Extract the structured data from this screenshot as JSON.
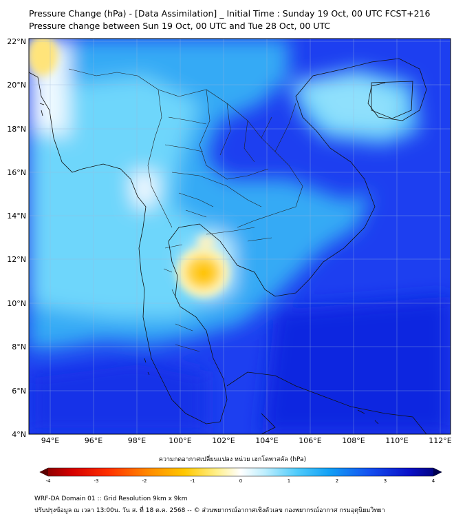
{
  "title": {
    "line1": "Pressure Change (hPa) - [Data Assimilation] _ Initial Time : Sunday 19 Oct, 00 UTC FCST+216",
    "line2": "Pressure change between Sun 19 Oct, 00 UTC and Tue 28 Oct, 00 UTC"
  },
  "map": {
    "lat_labels": [
      "22°N",
      "20°N",
      "18°N",
      "16°N",
      "14°N",
      "12°N",
      "10°N",
      "8°N",
      "6°N",
      "4°N"
    ],
    "lon_labels": [
      "94°E",
      "96°E",
      "98°E",
      "100°E",
      "102°E",
      "104°E",
      "106°E",
      "108°E",
      "110°E",
      "112°E"
    ],
    "lat_range": [
      4,
      22
    ],
    "lon_range": [
      93,
      112.5
    ],
    "background_color": "#1d3ff0"
  },
  "colorbar": {
    "title": "ความกดอากาศเปลี่ยนแปลง หน่วย เฮกโตพาสคัล (hPa)",
    "ticks": [
      "-4",
      "-3",
      "-2",
      "-1",
      "0",
      "1",
      "2",
      "3",
      "4"
    ],
    "range": [
      -4,
      4
    ],
    "colors": [
      "#7a0000",
      "#d40000",
      "#ff3000",
      "#ff8a00",
      "#ffc800",
      "#fff08a",
      "#ffffff",
      "#bdeefe",
      "#4fcbfb",
      "#12a0f5",
      "#1450f0",
      "#0a10c8",
      "#000070"
    ]
  },
  "footer": {
    "line1": "WRF-DA Domain 01 :: Grid Resolution 9km x 9km",
    "line2": "ปรับปรุงข้อมูล ณ เวลา 13:00น. วัน ส. ที่ 18 ต.ค. 2568 -- © ส่วนพยากรณ์อากาศเชิงตัวเลข กองพยากรณ์อากาศ กรมอุตุนิยมวิทยา"
  }
}
